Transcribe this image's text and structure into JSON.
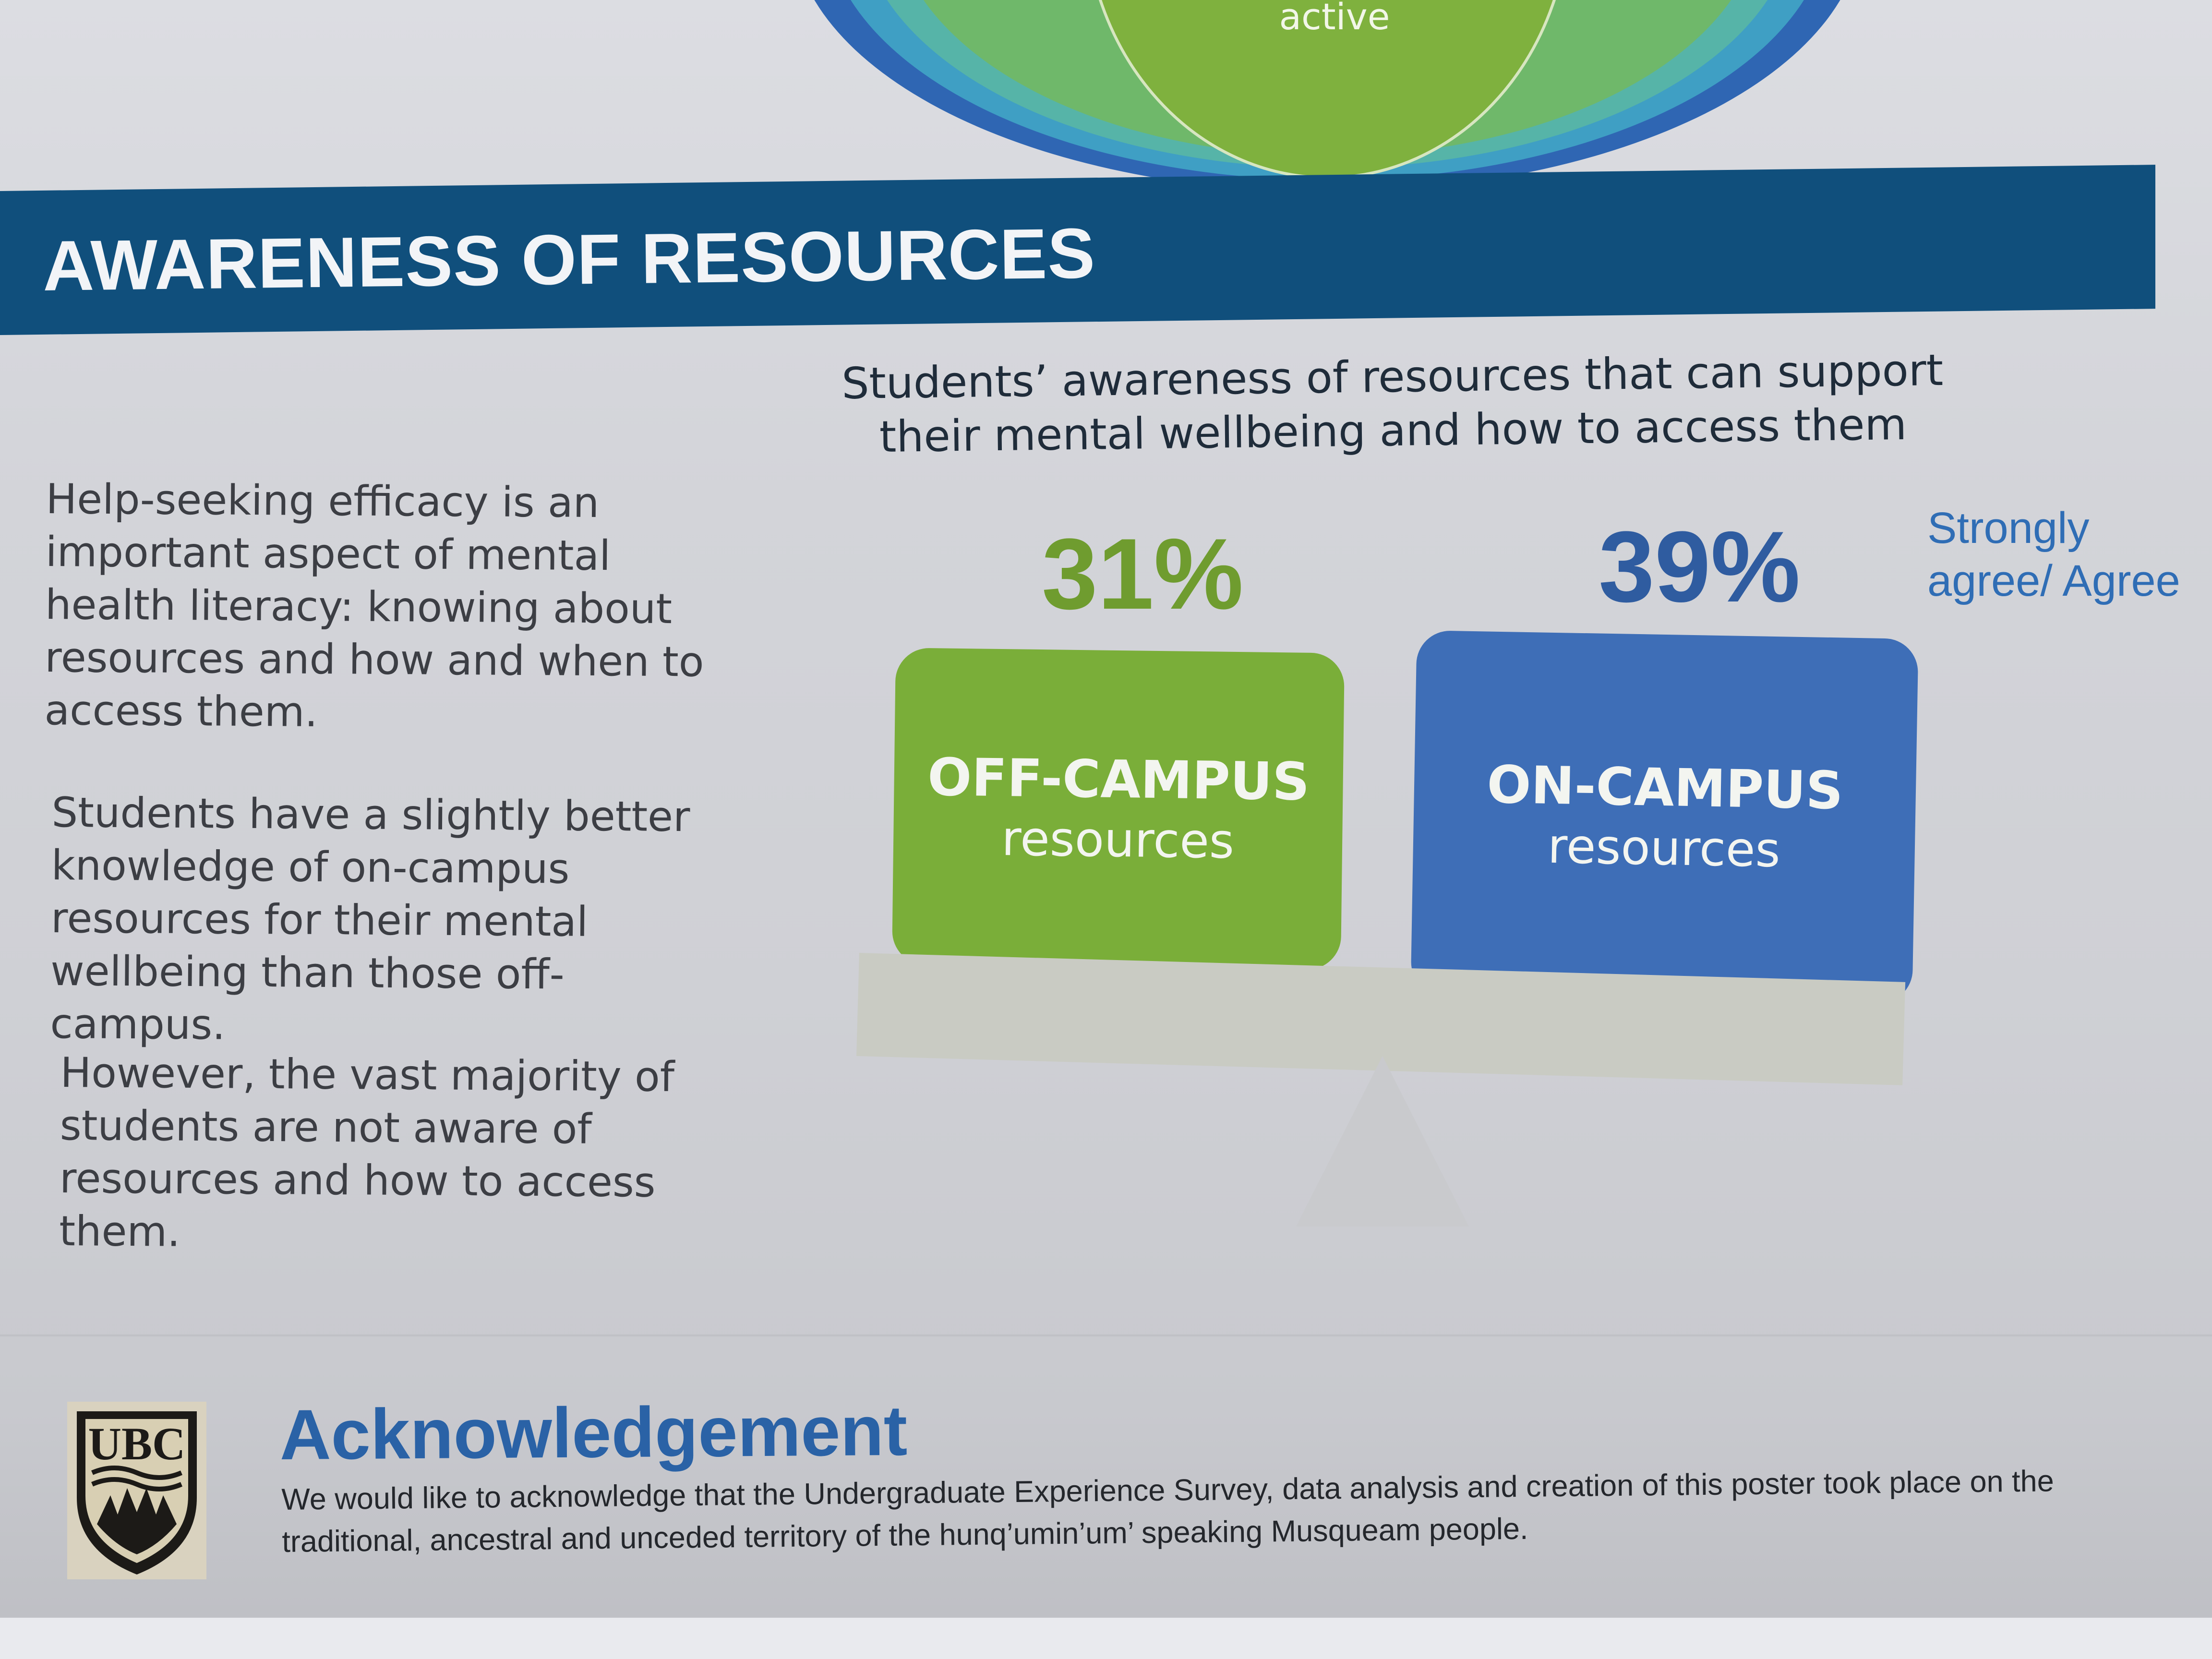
{
  "top_graphic": {
    "label": "active"
  },
  "header": {
    "title": "AWARENESS OF RESOURCES"
  },
  "left_text": {
    "paragraph_1": "Help-seeking efficacy is an important aspect of mental health literacy: knowing about resources and how and when to access them.",
    "paragraph_2": "Students have a slightly better knowledge of on-campus resources for their mental wellbeing than those off-campus.",
    "paragraph_3": "However, the vast majority of students are not aware of resources and how to access them."
  },
  "chart": {
    "title": "Students’ awareness of resources that can support their mental wellbeing and how to access them",
    "legend_label": "Strongly agree/ Agree",
    "off_campus": {
      "percent": "31%",
      "title": "OFF-CAMPUS",
      "subtitle": "resources",
      "color": "#7aae39"
    },
    "on_campus": {
      "percent": "39%",
      "title": "ON-CAMPUS",
      "subtitle": "resources",
      "color": "#3e6eb7"
    }
  },
  "acknowledgement": {
    "title": "Acknowledgement",
    "text": "We would like to acknowledge that the Undergraduate Experience Survey, data analysis and creation of this poster took place on the traditional, ancestral and unceded territory of the hunq’umin’um’ speaking Musqueam people."
  },
  "logo": {
    "text": "UBC",
    "icon": "ubc-crest-icon"
  },
  "colors": {
    "header_band": "#104f7c",
    "accent_blue": "#2a62a6",
    "green": "#7aae39"
  }
}
